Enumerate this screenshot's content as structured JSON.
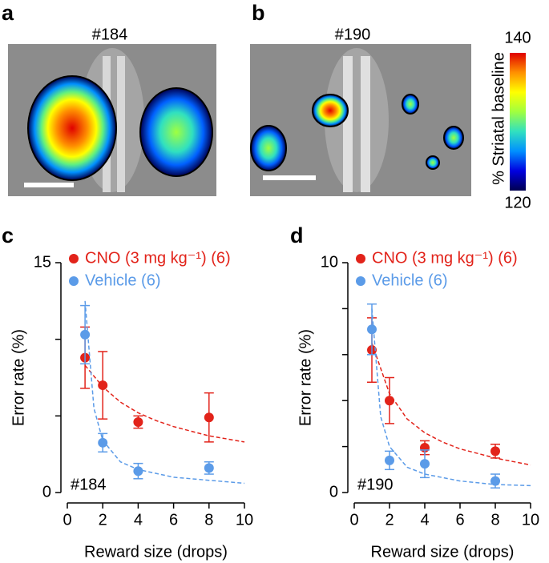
{
  "images": [
    {
      "label": "a",
      "title": "#184"
    },
    {
      "label": "b",
      "title": "#190"
    }
  ],
  "colorbar": {
    "label": "% Striatal baseline",
    "lim": [
      120,
      140
    ],
    "ticks": [
      120,
      140
    ],
    "colors": [
      "#000050",
      "#0000e0",
      "#0090ff",
      "#30e0c0",
      "#a0ff40",
      "#ffff00",
      "#ff9000",
      "#e00000"
    ]
  },
  "chart_data": [
    {
      "type": "scatter",
      "panel": "c",
      "annotation": "#184",
      "xlabel": "Reward size (drops)",
      "ylabel": "Error rate (%)",
      "xlim": [
        0,
        10
      ],
      "xticks": [
        0,
        2,
        4,
        6,
        8,
        10
      ],
      "ylim": [
        0,
        15
      ],
      "yticks": [
        0,
        15
      ],
      "yminorticks": [
        5,
        10
      ],
      "legend": "upper left",
      "series": [
        {
          "name": "CNO (3 mg kg⁻¹) (6)",
          "color": "#e2231a",
          "x": [
            1,
            2,
            4,
            8
          ],
          "values": [
            8.8,
            7.0,
            4.6,
            4.9
          ],
          "errors": [
            2.0,
            2.2,
            0.4,
            1.6
          ],
          "fit": {
            "x": [
              1,
              2,
              3,
              4,
              5,
              6,
              7,
              8,
              9,
              10
            ],
            "values": [
              8.3,
              6.9,
              5.9,
              5.2,
              4.7,
              4.3,
              4.0,
              3.7,
              3.5,
              3.3
            ]
          }
        },
        {
          "name": "Vehicle (6)",
          "color": "#5b9be8",
          "x": [
            1,
            2,
            4,
            8
          ],
          "values": [
            10.3,
            3.25,
            1.4,
            1.6
          ],
          "errors": [
            1.9,
            0.6,
            0.5,
            0.4
          ],
          "fit": {
            "x": [
              1,
              1.5,
              2,
              3,
              4,
              6,
              8,
              10
            ],
            "values": [
              12.5,
              5.5,
              3.4,
              2.0,
              1.5,
              1.0,
              0.8,
              0.6
            ]
          }
        }
      ]
    },
    {
      "type": "scatter",
      "panel": "d",
      "annotation": "#190",
      "xlabel": "Reward size (drops)",
      "ylabel": "Error rate (%)",
      "xlim": [
        0,
        10
      ],
      "xticks": [
        0,
        2,
        4,
        6,
        8,
        10
      ],
      "ylim": [
        0,
        10
      ],
      "yticks": [
        0,
        10
      ],
      "yminorticks": [
        2,
        4,
        6,
        8
      ],
      "legend": "upper left",
      "series": [
        {
          "name": "CNO (3 mg kg⁻¹) (6)",
          "color": "#e2231a",
          "x": [
            1,
            2,
            4,
            8
          ],
          "values": [
            6.2,
            4.0,
            1.95,
            1.8
          ],
          "errors": [
            1.4,
            1.0,
            0.3,
            0.3
          ],
          "fit": {
            "x": [
              1,
              2,
              3,
              4,
              5,
              6,
              7,
              8,
              9,
              10
            ],
            "values": [
              6.5,
              4.3,
              3.2,
              2.6,
              2.2,
              1.9,
              1.7,
              1.5,
              1.35,
              1.2
            ]
          }
        },
        {
          "name": "Vehicle (6)",
          "color": "#5b9be8",
          "x": [
            1,
            2,
            4,
            8
          ],
          "values": [
            7.1,
            1.4,
            1.25,
            0.5
          ],
          "errors": [
            1.1,
            0.4,
            0.6,
            0.3
          ],
          "fit": {
            "x": [
              1,
              1.5,
              2,
              3,
              4,
              6,
              8,
              10
            ],
            "values": [
              8.0,
              3.3,
              2.0,
              1.1,
              0.8,
              0.5,
              0.35,
              0.3
            ]
          }
        }
      ]
    }
  ]
}
